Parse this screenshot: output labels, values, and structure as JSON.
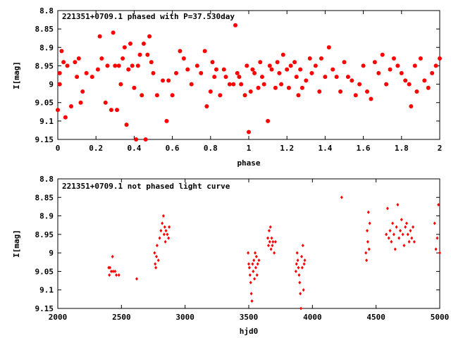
{
  "chart_data": [
    {
      "type": "scatter",
      "title": "221351+0709.1 phased with P=37.530day",
      "xlabel": "phase",
      "ylabel": "I[mag]",
      "xlim": [
        0,
        2
      ],
      "ylim": [
        9.15,
        8.8
      ],
      "y_inverted": true,
      "xticks": [
        "0",
        "0.2",
        "0.4",
        "0.6",
        "0.8",
        "1",
        "1.2",
        "1.4",
        "1.6",
        "1.8",
        "2"
      ],
      "yticks": [
        "8.8",
        "8.85",
        "8.9",
        "8.95",
        "9",
        "9.05",
        "9.1",
        "9.15"
      ],
      "marker": "filled-circle",
      "color": "#ff0000",
      "series": [
        {
          "x": [
            0.0,
            0.01,
            0.01,
            0.02,
            0.03,
            0.04,
            0.05,
            0.07,
            0.09,
            0.1,
            0.11,
            0.12,
            0.13,
            0.15,
            0.18,
            0.21,
            0.22,
            0.23,
            0.25,
            0.26,
            0.28,
            0.29,
            0.3,
            0.31,
            0.32,
            0.33,
            0.34,
            0.35,
            0.36,
            0.37,
            0.38,
            0.39,
            0.4,
            0.41,
            0.42,
            0.43,
            0.44,
            0.45,
            0.46,
            0.47,
            0.48,
            0.49,
            0.5,
            0.52,
            0.55,
            0.57,
            0.58,
            0.6,
            0.62,
            0.64,
            0.66,
            0.68,
            0.7,
            0.73,
            0.75,
            0.77,
            0.78,
            0.8,
            0.81,
            0.82,
            0.83,
            0.85,
            0.87,
            0.88,
            0.9,
            0.92,
            0.93,
            0.94,
            0.95,
            0.96,
            0.98,
            0.99,
            1.0,
            1.01,
            1.02,
            1.03,
            1.05,
            1.06,
            1.07,
            1.08,
            1.1,
            1.11,
            1.12,
            1.14,
            1.15,
            1.16,
            1.17,
            1.18,
            1.2,
            1.21,
            1.22,
            1.24,
            1.25,
            1.26,
            1.27,
            1.28,
            1.3,
            1.32,
            1.33,
            1.35,
            1.37,
            1.38,
            1.4,
            1.42,
            1.44,
            1.46,
            1.48,
            1.5,
            1.52,
            1.54,
            1.56,
            1.58,
            1.6,
            1.62,
            1.64,
            1.66,
            1.68,
            1.7,
            1.72,
            1.74,
            1.76,
            1.78,
            1.8,
            1.82,
            1.84,
            1.85,
            1.87,
            1.88,
            1.9,
            1.92,
            1.94,
            1.96,
            1.98,
            2.0
          ],
          "y": [
            9.07,
            8.97,
            9.0,
            8.91,
            8.94,
            9.09,
            8.95,
            9.06,
            8.94,
            8.98,
            8.93,
            9.05,
            9.02,
            8.97,
            8.98,
            8.96,
            8.87,
            8.93,
            9.05,
            8.95,
            9.07,
            8.86,
            8.95,
            9.07,
            8.95,
            9.0,
            8.93,
            8.9,
            9.11,
            8.96,
            8.89,
            8.95,
            9.01,
            9.15,
            8.95,
            8.92,
            9.03,
            8.89,
            9.15,
            8.92,
            8.87,
            8.94,
            8.97,
            9.03,
            8.99,
            9.1,
            8.99,
            9.03,
            8.97,
            8.91,
            8.93,
            8.96,
            9.0,
            8.95,
            8.97,
            8.91,
            9.06,
            9.02,
            8.94,
            8.98,
            8.96,
            9.03,
            8.96,
            8.98,
            9.0,
            9.0,
            8.84,
            8.97,
            8.98,
            9.0,
            9.03,
            8.95,
            9.13,
            9.02,
            8.96,
            8.97,
            9.01,
            8.94,
            8.98,
            9.0,
            9.1,
            8.95,
            8.96,
            9.01,
            8.94,
            8.97,
            9.0,
            8.92,
            8.96,
            9.01,
            8.95,
            8.94,
            8.98,
            9.03,
            8.96,
            9.01,
            8.99,
            8.93,
            8.97,
            8.95,
            9.02,
            8.93,
            8.98,
            8.9,
            8.96,
            8.98,
            9.02,
            8.94,
            8.98,
            8.99,
            9.03,
            9.0,
            8.95,
            9.02,
            9.04,
            8.94,
            8.97,
            8.92,
            9.0,
            8.96,
            8.93,
            8.95,
            8.97,
            8.99,
            9.0,
            9.06,
            8.95,
            9.02,
            8.93,
            8.99,
            9.01,
            8.97,
            8.95,
            8.93
          ]
        }
      ]
    },
    {
      "type": "scatter",
      "title": "221351+0709.1 not phased light curve",
      "xlabel": "hjd0",
      "ylabel": "I[mag]",
      "xlim": [
        2000,
        5000
      ],
      "ylim": [
        9.15,
        8.8
      ],
      "y_inverted": true,
      "xticks": [
        "2000",
        "2500",
        "3000",
        "3500",
        "4000",
        "4500",
        "5000"
      ],
      "yticks": [
        "8.8",
        "8.85",
        "8.9",
        "8.95",
        "9",
        "9.05",
        "9.1",
        "9.15"
      ],
      "marker": "small-diamond",
      "color": "#ff0000",
      "series": [
        {
          "x": [
            2400,
            2405,
            2410,
            2420,
            2430,
            2435,
            2450,
            2460,
            2480,
            2620,
            2760,
            2765,
            2770,
            2775,
            2780,
            2790,
            2800,
            2810,
            2820,
            2830,
            2835,
            2840,
            2845,
            2850,
            2860,
            2870,
            2875,
            3495,
            3500,
            3505,
            3510,
            3515,
            3520,
            3525,
            3530,
            3535,
            3540,
            3545,
            3550,
            3555,
            3560,
            3565,
            3570,
            3580,
            3650,
            3655,
            3660,
            3665,
            3670,
            3675,
            3680,
            3685,
            3690,
            3700,
            3710,
            3870,
            3875,
            3880,
            3885,
            3890,
            3895,
            3900,
            3905,
            3910,
            3915,
            3920,
            3925,
            3930,
            3935,
            3940,
            4230,
            4420,
            4425,
            4430,
            4435,
            4440,
            4445,
            4450,
            4580,
            4590,
            4600,
            4610,
            4620,
            4630,
            4640,
            4650,
            4660,
            4670,
            4680,
            4690,
            4700,
            4710,
            4720,
            4730,
            4740,
            4750,
            4760,
            4770,
            4780,
            4790,
            4800,
            4960,
            4970,
            4980,
            4990,
            5000
          ],
          "y": [
            9.04,
            9.06,
            9.04,
            9.05,
            9.01,
            9.05,
            9.05,
            9.06,
            9.06,
            9.07,
            9.0,
            9.03,
            9.04,
            9.01,
            8.98,
            9.02,
            8.96,
            8.94,
            8.92,
            8.9,
            8.95,
            8.93,
            8.97,
            8.94,
            8.95,
            8.96,
            8.93,
            9.0,
            9.03,
            9.04,
            9.06,
            9.08,
            9.11,
            9.13,
            9.03,
            9.05,
            9.02,
            9.07,
            9.0,
            9.04,
            9.01,
            9.06,
            9.03,
            9.02,
            8.96,
            8.98,
            8.94,
            8.97,
            8.93,
            8.99,
            8.96,
            8.98,
            8.97,
            9.0,
            8.97,
            9.05,
            9.03,
            9.0,
            9.02,
            9.04,
            9.06,
            9.08,
            9.11,
            9.15,
            9.01,
            9.04,
            8.98,
            9.1,
            9.03,
            9.02,
            8.85,
            9.0,
            9.02,
            8.94,
            8.97,
            8.89,
            8.99,
            8.92,
            8.95,
            8.88,
            8.96,
            8.94,
            8.97,
            8.92,
            8.95,
            8.99,
            8.93,
            8.87,
            8.96,
            8.94,
            8.91,
            8.95,
            8.98,
            8.93,
            8.92,
            8.95,
            8.97,
            8.94,
            8.96,
            8.93,
            8.97,
            8.92,
            8.99,
            8.96,
            8.87,
            9.0
          ]
        }
      ]
    }
  ]
}
